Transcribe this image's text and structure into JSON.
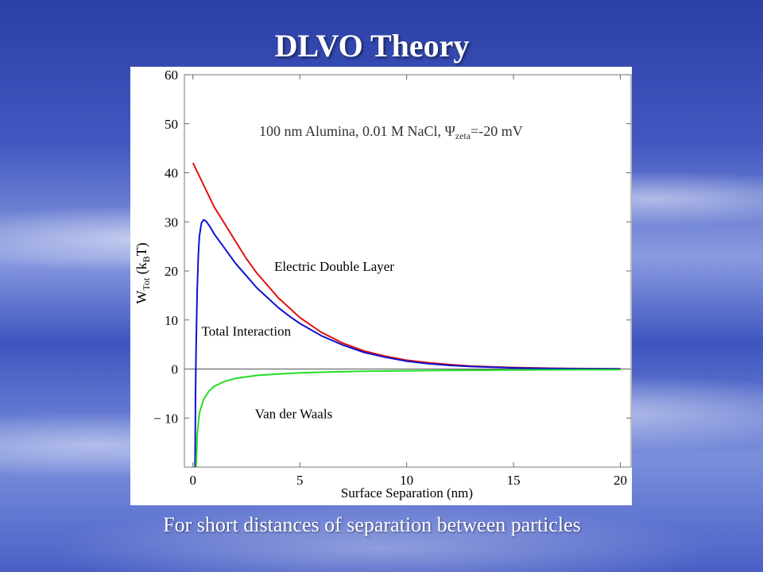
{
  "slide": {
    "title": "DLVO Theory",
    "caption": "For short distances of separation between particles"
  },
  "chart_data": {
    "type": "line",
    "title": "100 nm Alumina, 0.01 M NaCl, Ψzeta=-20 mV",
    "title_parts": {
      "prefix": "100 nm Alumina, 0.01 M NaCl, ",
      "symbol": "Ψ",
      "subscript": "zeta",
      "suffix": "=-20 mV"
    },
    "xlabel": "Surface Separation (nm)",
    "ylabel_parts": {
      "main": "W",
      "sub": "Tot",
      "mid": " (k",
      "sub2": "B",
      "end": "T)"
    },
    "xlim": [
      -0.4,
      20.5
    ],
    "ylim": [
      -20,
      60
    ],
    "xticks": [
      0,
      5,
      10,
      15,
      20
    ],
    "yticks": [
      -10,
      0,
      10,
      20,
      30,
      40,
      50,
      60
    ],
    "ytick_labels": [
      "− 10",
      "0",
      "10",
      "20",
      "30",
      "40",
      "50",
      "60"
    ],
    "grid": false,
    "series": [
      {
        "name": "Electric Double Layer",
        "color": "#e01010",
        "points": [
          [
            0,
            42
          ],
          [
            0.5,
            37.5
          ],
          [
            1,
            33
          ],
          [
            1.5,
            29.5
          ],
          [
            2,
            26
          ],
          [
            2.5,
            22.5
          ],
          [
            3,
            19.5
          ],
          [
            3.5,
            17
          ],
          [
            4,
            14.5
          ],
          [
            4.5,
            12.5
          ],
          [
            5,
            10.5
          ],
          [
            6,
            7.5
          ],
          [
            7,
            5.3
          ],
          [
            8,
            3.7
          ],
          [
            9,
            2.6
          ],
          [
            10,
            1.8
          ],
          [
            11,
            1.3
          ],
          [
            12,
            0.9
          ],
          [
            13,
            0.6
          ],
          [
            14,
            0.45
          ],
          [
            15,
            0.3
          ],
          [
            16,
            0.22
          ],
          [
            17,
            0.15
          ],
          [
            18,
            0.1
          ],
          [
            20,
            0.05
          ]
        ]
      },
      {
        "name": "Total Interaction",
        "color": "#1010d0",
        "points": [
          [
            0.1,
            -20
          ],
          [
            0.12,
            -5
          ],
          [
            0.15,
            5
          ],
          [
            0.2,
            16
          ],
          [
            0.25,
            23
          ],
          [
            0.3,
            27
          ],
          [
            0.4,
            29.8
          ],
          [
            0.5,
            30.4
          ],
          [
            0.6,
            30.2
          ],
          [
            0.8,
            29
          ],
          [
            1,
            27.5
          ],
          [
            1.5,
            24.5
          ],
          [
            2,
            21.5
          ],
          [
            2.5,
            19
          ],
          [
            3,
            16.5
          ],
          [
            3.5,
            14.5
          ],
          [
            4,
            12.5
          ],
          [
            4.5,
            10.8
          ],
          [
            5,
            9.3
          ],
          [
            6,
            6.8
          ],
          [
            7,
            4.9
          ],
          [
            8,
            3.4
          ],
          [
            9,
            2.4
          ],
          [
            10,
            1.6
          ],
          [
            11,
            1.1
          ],
          [
            12,
            0.75
          ],
          [
            13,
            0.5
          ],
          [
            14,
            0.35
          ],
          [
            15,
            0.22
          ],
          [
            16,
            0.15
          ],
          [
            17,
            0.1
          ],
          [
            18,
            0.06
          ],
          [
            20,
            0.03
          ]
        ]
      },
      {
        "name": "Van der Waals",
        "color": "#22dd22",
        "points": [
          [
            0.15,
            -20
          ],
          [
            0.2,
            -13.5
          ],
          [
            0.3,
            -9
          ],
          [
            0.5,
            -6.2
          ],
          [
            0.75,
            -4.5
          ],
          [
            1,
            -3.5
          ],
          [
            1.5,
            -2.5
          ],
          [
            2,
            -1.9
          ],
          [
            3,
            -1.3
          ],
          [
            4,
            -1.0
          ],
          [
            5,
            -0.8
          ],
          [
            6,
            -0.65
          ],
          [
            8,
            -0.45
          ],
          [
            10,
            -0.35
          ],
          [
            12,
            -0.28
          ],
          [
            14,
            -0.22
          ],
          [
            16,
            -0.18
          ],
          [
            18,
            -0.15
          ],
          [
            20,
            -0.13
          ]
        ]
      }
    ],
    "annotations": [
      {
        "text": "Electric Double Layer",
        "x": 3.8,
        "y": 20
      },
      {
        "text": "Total Interaction",
        "x": 0.4,
        "y": 6.8
      },
      {
        "text": "Van der Waals",
        "x": 2.9,
        "y": -10
      }
    ]
  }
}
